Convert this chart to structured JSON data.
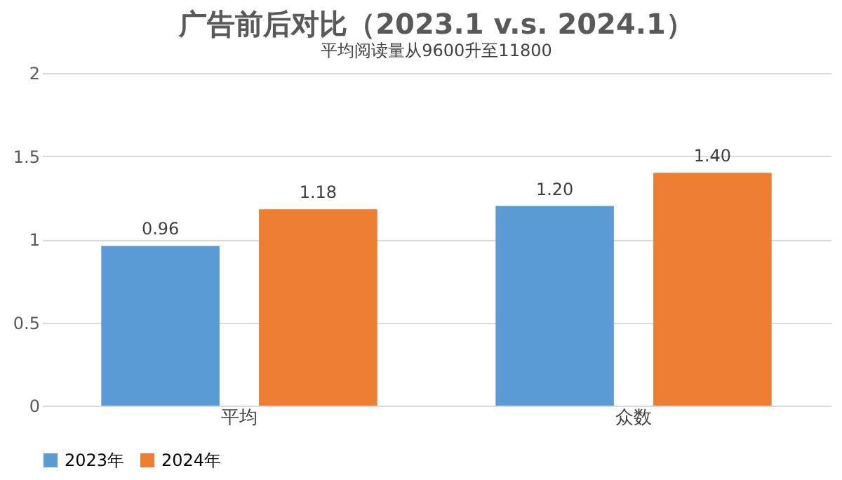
{
  "chart_data": {
    "type": "bar",
    "title": "广告前后对比（2023.1 v.s. 2024.1）",
    "subtitle": "平均阅读量从9600升至11800",
    "categories": [
      "平均",
      "众数"
    ],
    "series": [
      {
        "name": "2023年",
        "color": "#5b9bd5",
        "values": [
          0.96,
          1.2
        ],
        "value_labels": [
          "0.96",
          "1.20"
        ]
      },
      {
        "name": "2024年",
        "color": "#ed7d31",
        "values": [
          1.18,
          1.4
        ],
        "value_labels": [
          "1.18",
          "1.40"
        ]
      }
    ],
    "ylim": [
      0,
      2
    ],
    "yticks": [
      0,
      0.5,
      1,
      1.5,
      2
    ],
    "grid": "y",
    "legend": "bottom"
  }
}
